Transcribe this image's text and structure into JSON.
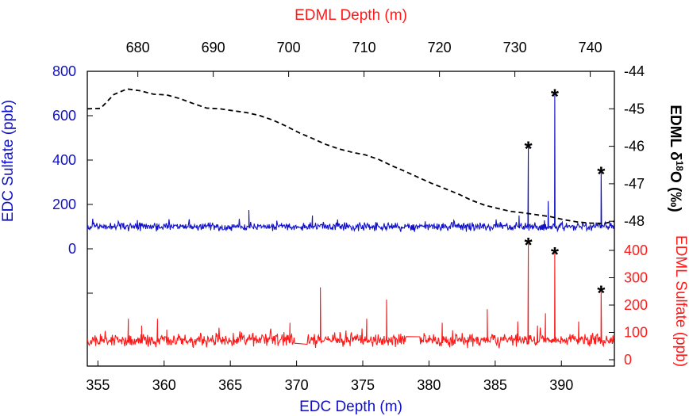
{
  "chart_data": {
    "type": "line",
    "axes": {
      "bottom": {
        "label": "EDC Depth (m)",
        "range": [
          354.2,
          394.0
        ],
        "ticks": [
          355,
          360,
          365,
          370,
          375,
          380,
          385,
          390
        ],
        "color": "#1010c8"
      },
      "top": {
        "label": "EDML Depth (m)",
        "range": [
          673.3,
          743.2
        ],
        "ticks": [
          680,
          690,
          700,
          710,
          720,
          730,
          740
        ],
        "color": "#ff1a1a"
      },
      "left": {
        "label": "EDC Sulfate (ppb)",
        "ticks": [
          0,
          200,
          400,
          600,
          800
        ],
        "color": "#1010c8"
      },
      "right_upper": {
        "label": "EDML δ18O (‰)",
        "ticks": [
          -44,
          -45,
          -46,
          -47,
          -48
        ],
        "color": "#000000"
      },
      "right_lower": {
        "label": "EDML Sulfate (ppb)",
        "ticks": [
          0,
          100,
          200,
          300,
          400
        ],
        "color": "#ff1a1a"
      }
    },
    "series": [
      {
        "axis": "left",
        "color": "#1010c8",
        "style": "solid",
        "baseline": 100,
        "noise": 16,
        "seed": 11,
        "spikes": [
          [
            366.4,
            175
          ],
          [
            371.2,
            150
          ],
          [
            386.8,
            150
          ],
          [
            387.5,
            470
          ],
          [
            389.0,
            215
          ],
          [
            389.5,
            705
          ],
          [
            393.0,
            355
          ]
        ]
      },
      {
        "axis": "right_upper",
        "color": "#000000",
        "style": "dashed",
        "points": [
          [
            354.2,
            -45.0
          ],
          [
            355.2,
            -44.99
          ],
          [
            356.2,
            -44.62
          ],
          [
            357.2,
            -44.47
          ],
          [
            358.2,
            -44.52
          ],
          [
            359.2,
            -44.61
          ],
          [
            360.2,
            -44.63
          ],
          [
            361.2,
            -44.73
          ],
          [
            362.2,
            -44.86
          ],
          [
            363.2,
            -44.98
          ],
          [
            364.2,
            -45.0
          ],
          [
            365.2,
            -45.05
          ],
          [
            366.2,
            -45.1
          ],
          [
            367.2,
            -45.18
          ],
          [
            368.2,
            -45.3
          ],
          [
            369.2,
            -45.46
          ],
          [
            370.2,
            -45.64
          ],
          [
            371.2,
            -45.79
          ],
          [
            372.2,
            -45.95
          ],
          [
            373.2,
            -46.07
          ],
          [
            374.2,
            -46.16
          ],
          [
            375.2,
            -46.23
          ],
          [
            376.2,
            -46.35
          ],
          [
            377.2,
            -46.52
          ],
          [
            378.2,
            -46.67
          ],
          [
            379.2,
            -46.83
          ],
          [
            380.2,
            -46.99
          ],
          [
            381.2,
            -47.13
          ],
          [
            382.2,
            -47.27
          ],
          [
            383.2,
            -47.44
          ],
          [
            384.2,
            -47.57
          ],
          [
            385.2,
            -47.66
          ],
          [
            386.2,
            -47.74
          ],
          [
            387.2,
            -47.78
          ],
          [
            388.2,
            -47.83
          ],
          [
            389.2,
            -47.88
          ],
          [
            390.2,
            -47.96
          ],
          [
            391.2,
            -48.02
          ],
          [
            392.2,
            -48.05
          ],
          [
            393.2,
            -48.06
          ],
          [
            394.0,
            -48.0
          ]
        ]
      },
      {
        "axis": "right_lower",
        "color": "#ff1a1a",
        "style": "solid",
        "baseline": 72,
        "noise": 19,
        "seed": 29,
        "gaps": [
          [
            369.9,
            370.8
          ],
          [
            378.3,
            379.3
          ]
        ],
        "spikes": [
          [
            357.3,
            150
          ],
          [
            358.3,
            125
          ],
          [
            359.5,
            150
          ],
          [
            360.2,
            110
          ],
          [
            369.5,
            135
          ],
          [
            371.8,
            265
          ],
          [
            375.3,
            150
          ],
          [
            376.8,
            220
          ],
          [
            381.0,
            135
          ],
          [
            384.4,
            185
          ],
          [
            386.7,
            140
          ],
          [
            387.5,
            435
          ],
          [
            388.2,
            125
          ],
          [
            388.8,
            170
          ],
          [
            389.5,
            400
          ],
          [
            391.3,
            140
          ],
          [
            393.0,
            260
          ]
        ]
      }
    ],
    "annotations": [
      {
        "text": "*",
        "x": 387.5,
        "y": 470,
        "axis": "left"
      },
      {
        "text": "*",
        "x": 389.5,
        "y": 705,
        "axis": "left"
      },
      {
        "text": "*",
        "x": 393.0,
        "y": 355,
        "axis": "left"
      },
      {
        "text": "*",
        "x": 387.5,
        "y": 435,
        "axis": "right_lower"
      },
      {
        "text": "*",
        "x": 389.5,
        "y": 400,
        "axis": "right_lower"
      },
      {
        "text": "*",
        "x": 393.0,
        "y": 260,
        "axis": "right_lower"
      }
    ]
  }
}
